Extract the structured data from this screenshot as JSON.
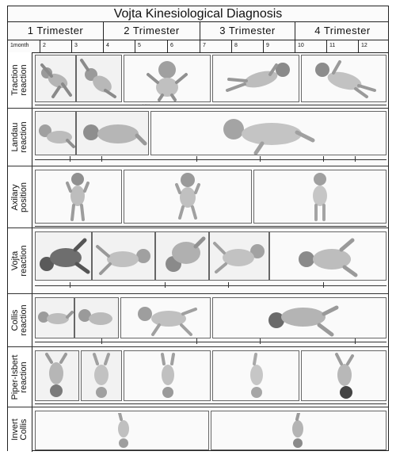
{
  "title": "Vojta Kinesiological Diagnosis",
  "trimesters": [
    "1 Trimester",
    "2 Trimester",
    "3 Trimester",
    "4 Trimester"
  ],
  "months": [
    "1month",
    "2",
    "3",
    "4",
    "5",
    "6",
    "7",
    "8",
    "9",
    "10",
    "11",
    "12"
  ],
  "rows": [
    {
      "label": "Traction\nreaction",
      "figures": [
        "infant-photo",
        "infant-photo",
        "infant-photo",
        "infant-photo",
        "infant-photo"
      ]
    },
    {
      "label": "Landau\nreaction",
      "figures": [
        "infant-photo",
        "infant-photo",
        "infant-photo"
      ]
    },
    {
      "label": "Axilary\nposition",
      "figures": [
        "infant-photo",
        "infant-photo",
        "infant-photo"
      ]
    },
    {
      "label": "Vojta\nreaction",
      "figures": [
        "infant-photo",
        "infant-photo",
        "infant-photo",
        "infant-photo",
        "infant-photo"
      ]
    },
    {
      "label": "Collis\nreaction",
      "figures": [
        "infant-photo",
        "infant-photo",
        "infant-photo",
        "infant-photo"
      ]
    },
    {
      "label": "Piper-Isbert\nreaction",
      "figures": [
        "infant-photo",
        "infant-photo",
        "infant-photo",
        "infant-photo",
        "infant-photo"
      ]
    },
    {
      "label": "Invert\nCollis",
      "figures": [
        "infant-photo",
        "infant-photo"
      ]
    }
  ]
}
